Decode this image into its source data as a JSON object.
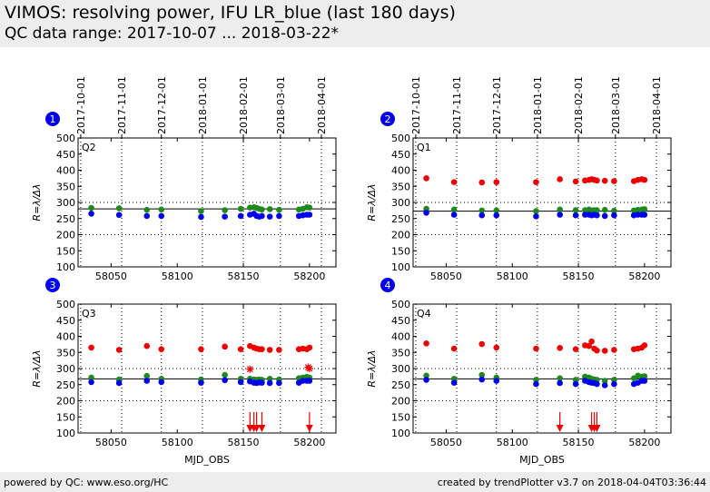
{
  "header": {
    "title": "VIMOS: resolving power, IFU LR_blue (last 180 days)",
    "subtitle": "QC data range: 2017-10-07 ... 2018-03-22*"
  },
  "footer": {
    "left": "powered by QC: www.eso.org/HC",
    "right": "created by trendPlotter v3.7 on 2018-04-04T03:36:44"
  },
  "colors": {
    "blue": "#0000ee",
    "green": "#1e8a1e",
    "red": "#ee0000",
    "badge": "#0000ee"
  },
  "chart_data": [
    {
      "type": "scatter",
      "panel_number": "1",
      "quadrant_label": "Q2",
      "xlabel": "",
      "ylabel": "R=λ/Δλ",
      "xlim": [
        58025,
        58220
      ],
      "ylim": [
        100,
        500
      ],
      "xticks": [
        58050,
        58100,
        58150,
        58200
      ],
      "yticks": [
        100,
        150,
        200,
        250,
        300,
        350,
        400,
        450,
        500
      ],
      "top_date_ticks": [
        {
          "label": "2017-10-01",
          "mjd": 58027
        },
        {
          "label": "2017-11-01",
          "mjd": 58058
        },
        {
          "label": "2017-12-01",
          "mjd": 58088
        },
        {
          "label": "2018-01-01",
          "mjd": 58119
        },
        {
          "label": "2018-02-01",
          "mjd": 58150
        },
        {
          "label": "2018-03-01",
          "mjd": 58178
        },
        {
          "label": "2018-04-01",
          "mjd": 58209
        }
      ],
      "reference_line": 280,
      "dotted_levels": [
        200,
        300
      ],
      "series": [
        {
          "color_key": "green",
          "points": [
            [
              58035,
              283
            ],
            [
              58056,
              282
            ],
            [
              58077,
              277
            ],
            [
              58088,
              278
            ],
            [
              58118,
              273
            ],
            [
              58136,
              276
            ],
            [
              58148,
              280
            ],
            [
              58155,
              284
            ],
            [
              58158,
              285
            ],
            [
              58160,
              283
            ],
            [
              58162,
              280
            ],
            [
              58164,
              278
            ],
            [
              58170,
              279
            ],
            [
              58177,
              277
            ],
            [
              58192,
              278
            ],
            [
              58195,
              280
            ],
            [
              58198,
              285
            ],
            [
              58200,
              284
            ]
          ]
        },
        {
          "color_key": "blue",
          "points": [
            [
              58035,
              265
            ],
            [
              58056,
              261
            ],
            [
              58077,
              258
            ],
            [
              58088,
              258
            ],
            [
              58118,
              255
            ],
            [
              58136,
              256
            ],
            [
              58148,
              258
            ],
            [
              58155,
              262
            ],
            [
              58158,
              265
            ],
            [
              58160,
              258
            ],
            [
              58162,
              256
            ],
            [
              58164,
              258
            ],
            [
              58170,
              256
            ],
            [
              58177,
              258
            ],
            [
              58192,
              258
            ],
            [
              58195,
              260
            ],
            [
              58198,
              262
            ],
            [
              58200,
              262
            ]
          ]
        }
      ],
      "red_stars": [],
      "red_arrows": []
    },
    {
      "type": "scatter",
      "panel_number": "2",
      "quadrant_label": "Q1",
      "xlabel": "",
      "ylabel": "R=λ/Δλ",
      "xlim": [
        58025,
        58220
      ],
      "ylim": [
        100,
        500
      ],
      "xticks": [
        58050,
        58100,
        58150,
        58200
      ],
      "yticks": [
        100,
        150,
        200,
        250,
        300,
        350,
        400,
        450,
        500
      ],
      "top_date_ticks": [
        {
          "label": "2017-10-01",
          "mjd": 58027
        },
        {
          "label": "2017-11-01",
          "mjd": 58058
        },
        {
          "label": "2017-12-01",
          "mjd": 58088
        },
        {
          "label": "2018-01-01",
          "mjd": 58119
        },
        {
          "label": "2018-02-01",
          "mjd": 58150
        },
        {
          "label": "2018-03-01",
          "mjd": 58178
        },
        {
          "label": "2018-04-01",
          "mjd": 58209
        }
      ],
      "reference_line": 273,
      "dotted_levels": [
        200,
        300
      ],
      "series": [
        {
          "color_key": "red",
          "points": [
            [
              58035,
              375
            ],
            [
              58056,
              363
            ],
            [
              58077,
              362
            ],
            [
              58088,
              363
            ],
            [
              58118,
              363
            ],
            [
              58136,
              372
            ],
            [
              58148,
              365
            ],
            [
              58155,
              368
            ],
            [
              58158,
              370
            ],
            [
              58160,
              372
            ],
            [
              58162,
              370
            ],
            [
              58164,
              368
            ],
            [
              58170,
              367
            ],
            [
              58177,
              366
            ],
            [
              58192,
              366
            ],
            [
              58195,
              370
            ],
            [
              58198,
              372
            ],
            [
              58200,
              370
            ]
          ]
        },
        {
          "color_key": "green",
          "points": [
            [
              58035,
              280
            ],
            [
              58056,
              278
            ],
            [
              58077,
              275
            ],
            [
              58088,
              275
            ],
            [
              58118,
              273
            ],
            [
              58136,
              278
            ],
            [
              58148,
              276
            ],
            [
              58155,
              276
            ],
            [
              58158,
              278
            ],
            [
              58160,
              275
            ],
            [
              58162,
              276
            ],
            [
              58164,
              276
            ],
            [
              58170,
              277
            ],
            [
              58177,
              274
            ],
            [
              58192,
              275
            ],
            [
              58195,
              277
            ],
            [
              58198,
              278
            ],
            [
              58200,
              279
            ]
          ]
        },
        {
          "color_key": "blue",
          "points": [
            [
              58035,
              268
            ],
            [
              58056,
              262
            ],
            [
              58077,
              260
            ],
            [
              58088,
              260
            ],
            [
              58118,
              257
            ],
            [
              58136,
              262
            ],
            [
              58148,
              260
            ],
            [
              58155,
              262
            ],
            [
              58158,
              262
            ],
            [
              58160,
              260
            ],
            [
              58162,
              262
            ],
            [
              58164,
              260
            ],
            [
              58170,
              258
            ],
            [
              58177,
              260
            ],
            [
              58192,
              260
            ],
            [
              58195,
              262
            ],
            [
              58198,
              262
            ],
            [
              58200,
              262
            ]
          ]
        }
      ],
      "red_stars": [],
      "red_arrows": []
    },
    {
      "type": "scatter",
      "panel_number": "3",
      "quadrant_label": "Q3",
      "xlabel": "MJD_OBS",
      "ylabel": "R=λ/Δλ",
      "xlim": [
        58025,
        58220
      ],
      "ylim": [
        100,
        500
      ],
      "xticks": [
        58050,
        58100,
        58150,
        58200
      ],
      "yticks": [
        100,
        150,
        200,
        250,
        300,
        350,
        400,
        450,
        500
      ],
      "reference_line": 268,
      "dotted_levels": [
        200,
        300
      ],
      "series": [
        {
          "color_key": "red",
          "points": [
            [
              58035,
              365
            ],
            [
              58056,
              358
            ],
            [
              58077,
              370
            ],
            [
              58088,
              360
            ],
            [
              58118,
              360
            ],
            [
              58136,
              368
            ],
            [
              58148,
              360
            ],
            [
              58155,
              370
            ],
            [
              58158,
              365
            ],
            [
              58160,
              362
            ],
            [
              58162,
              360
            ],
            [
              58164,
              360
            ],
            [
              58170,
              358
            ],
            [
              58177,
              358
            ],
            [
              58192,
              360
            ],
            [
              58195,
              362
            ],
            [
              58198,
              360
            ],
            [
              58200,
              365
            ]
          ]
        },
        {
          "color_key": "green",
          "points": [
            [
              58035,
              272
            ],
            [
              58056,
              266
            ],
            [
              58077,
              277
            ],
            [
              58088,
              268
            ],
            [
              58118,
              266
            ],
            [
              58136,
              280
            ],
            [
              58148,
              268
            ],
            [
              58155,
              268
            ],
            [
              58158,
              266
            ],
            [
              58160,
              265
            ],
            [
              58162,
              266
            ],
            [
              58164,
              265
            ],
            [
              58170,
              268
            ],
            [
              58177,
              266
            ],
            [
              58192,
              270
            ],
            [
              58195,
              272
            ],
            [
              58198,
              274
            ],
            [
              58200,
              272
            ]
          ]
        },
        {
          "color_key": "blue",
          "points": [
            [
              58035,
              258
            ],
            [
              58056,
              255
            ],
            [
              58077,
              262
            ],
            [
              58088,
              258
            ],
            [
              58118,
              256
            ],
            [
              58136,
              264
            ],
            [
              58148,
              258
            ],
            [
              58155,
              260
            ],
            [
              58158,
              256
            ],
            [
              58160,
              255
            ],
            [
              58162,
              257
            ],
            [
              58164,
              256
            ],
            [
              58170,
              255
            ],
            [
              58177,
              255
            ],
            [
              58192,
              256
            ],
            [
              58195,
              262
            ],
            [
              58198,
              262
            ],
            [
              58200,
              262
            ]
          ]
        }
      ],
      "red_stars": [
        [
          58155,
          298
        ],
        [
          58199,
          304
        ],
        [
          58200,
          300
        ]
      ],
      "red_arrows": [
        58155,
        58158,
        58160,
        58164,
        58200
      ]
    },
    {
      "type": "scatter",
      "panel_number": "4",
      "quadrant_label": "Q4",
      "xlabel": "MJD_OBS",
      "ylabel": "R=λ/Δλ",
      "xlim": [
        58025,
        58220
      ],
      "ylim": [
        100,
        500
      ],
      "xticks": [
        58050,
        58100,
        58150,
        58200
      ],
      "yticks": [
        100,
        150,
        200,
        250,
        300,
        350,
        400,
        450,
        500
      ],
      "reference_line": 268,
      "dotted_levels": [
        200,
        300
      ],
      "series": [
        {
          "color_key": "red",
          "points": [
            [
              58035,
              378
            ],
            [
              58056,
              362
            ],
            [
              58077,
              376
            ],
            [
              58088,
              365
            ],
            [
              58118,
              362
            ],
            [
              58136,
              364
            ],
            [
              58148,
              360
            ],
            [
              58155,
              372
            ],
            [
              58158,
              370
            ],
            [
              58160,
              384
            ],
            [
              58162,
              362
            ],
            [
              58164,
              356
            ],
            [
              58170,
              355
            ],
            [
              58177,
              358
            ],
            [
              58192,
              360
            ],
            [
              58195,
              362
            ],
            [
              58198,
              365
            ],
            [
              58200,
              372
            ]
          ]
        },
        {
          "color_key": "green",
          "points": [
            [
              58035,
              278
            ],
            [
              58056,
              268
            ],
            [
              58077,
              280
            ],
            [
              58088,
              272
            ],
            [
              58118,
              265
            ],
            [
              58136,
              270
            ],
            [
              58148,
              265
            ],
            [
              58155,
              275
            ],
            [
              58158,
              272
            ],
            [
              58160,
              268
            ],
            [
              58162,
              266
            ],
            [
              58164,
              265
            ],
            [
              58170,
              262
            ],
            [
              58177,
              265
            ],
            [
              58192,
              270
            ],
            [
              58195,
              278
            ],
            [
              58198,
              275
            ],
            [
              58200,
              276
            ]
          ]
        },
        {
          "color_key": "blue",
          "points": [
            [
              58035,
              265
            ],
            [
              58056,
              256
            ],
            [
              58077,
              266
            ],
            [
              58088,
              262
            ],
            [
              58118,
              252
            ],
            [
              58136,
              255
            ],
            [
              58148,
              252
            ],
            [
              58155,
              262
            ],
            [
              58158,
              258
            ],
            [
              58160,
              256
            ],
            [
              58162,
              255
            ],
            [
              58164,
              252
            ],
            [
              58170,
              248
            ],
            [
              58177,
              252
            ],
            [
              58192,
              252
            ],
            [
              58195,
              256
            ],
            [
              58198,
              262
            ],
            [
              58200,
              262
            ]
          ]
        }
      ],
      "red_stars": [],
      "red_arrows": [
        58136,
        58160,
        58162,
        58164
      ]
    }
  ]
}
